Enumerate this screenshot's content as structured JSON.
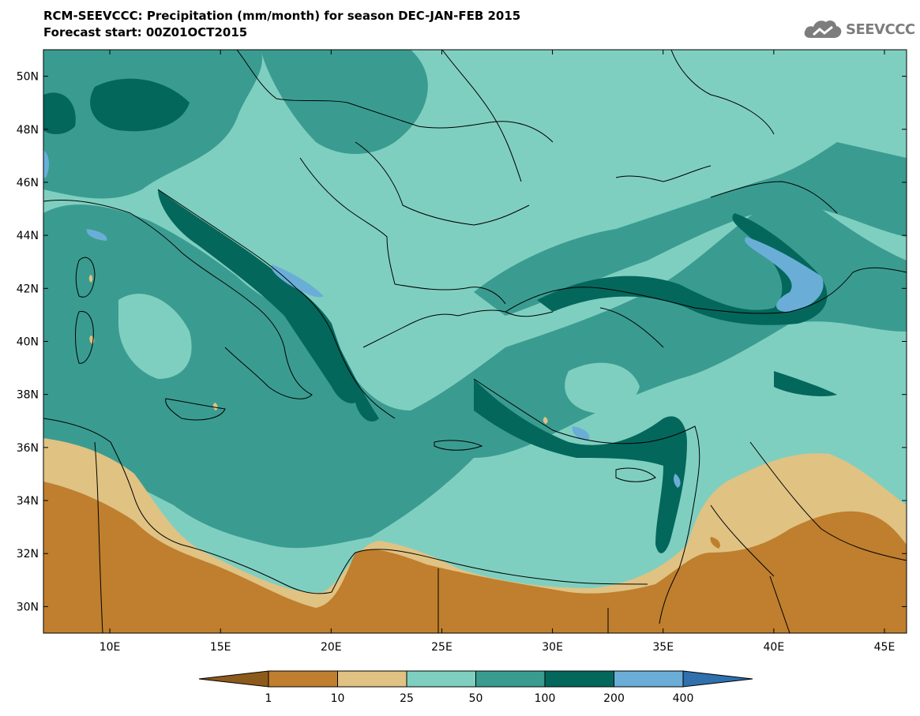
{
  "header": {
    "line1": "RCM-SEEVCCC: Precipitation (mm/month) for season DEC-JAN-FEB 2015",
    "line2": "Forecast start: 00Z01OCT2015"
  },
  "logo": {
    "text": "SEEVCCC",
    "icon": "cloud-icon"
  },
  "axes": {
    "lat_labels": [
      "50N",
      "48N",
      "46N",
      "44N",
      "42N",
      "40N",
      "38N",
      "36N",
      "34N",
      "32N",
      "30N"
    ],
    "lat_values": [
      50,
      48,
      46,
      44,
      42,
      40,
      38,
      36,
      34,
      32,
      30
    ],
    "lon_labels": [
      "10E",
      "15E",
      "20E",
      "25E",
      "30E",
      "35E",
      "40E",
      "45E"
    ],
    "lon_values": [
      10,
      15,
      20,
      25,
      30,
      35,
      40,
      45
    ],
    "lon_range": [
      7,
      46
    ],
    "lat_range": [
      29,
      51
    ]
  },
  "colorbar": {
    "colors": [
      "#8c5a1b",
      "#bf7f2e",
      "#e0c283",
      "#7fcfc0",
      "#3a9c90",
      "#04675c",
      "#6aaed8",
      "#2f70ad"
    ],
    "labels": [
      "1",
      "10",
      "25",
      "50",
      "100",
      "200",
      "400"
    ]
  }
}
